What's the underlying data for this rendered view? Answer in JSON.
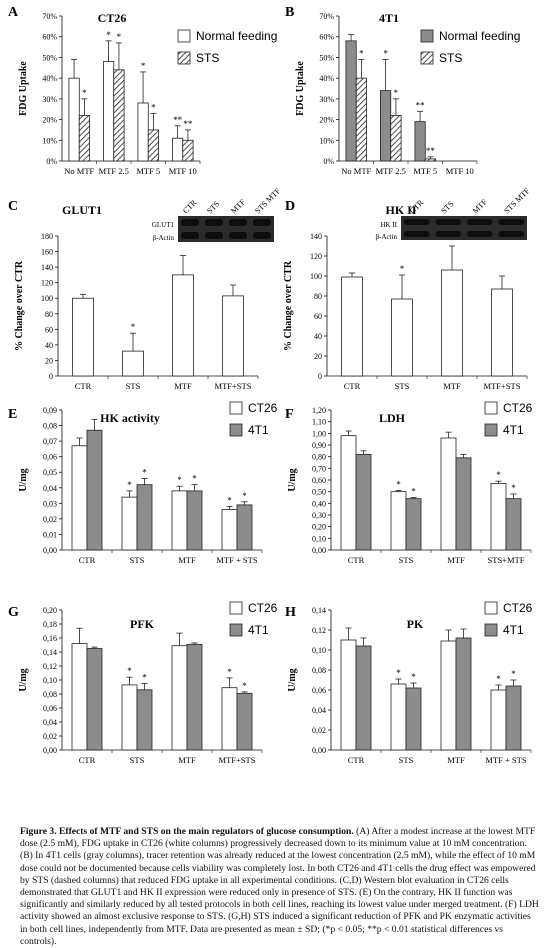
{
  "panels": [
    {
      "letter": "A",
      "title": "CT26",
      "ylabel": "FDG Uptake",
      "yticks": [
        "0%",
        "10%",
        "20%",
        "30%",
        "40%",
        "50%",
        "60%",
        "70%"
      ],
      "ymax": 70,
      "categories": [
        "No MTF",
        "MTF 2.5",
        "MTF 5",
        "MTF 10"
      ],
      "series_style": [
        "white",
        "hatch"
      ],
      "legend": [
        "Normal feeding",
        "STS"
      ],
      "values": [
        [
          40,
          48,
          28,
          11
        ],
        [
          22,
          44,
          15,
          10
        ]
      ],
      "errors": [
        [
          9,
          10,
          15,
          6
        ],
        [
          8,
          13,
          8,
          5
        ]
      ],
      "sig": [
        [
          "",
          "*",
          "*",
          "**"
        ],
        [
          "*",
          "*",
          "*",
          "**"
        ]
      ]
    },
    {
      "letter": "B",
      "title": "4T1",
      "ylabel": "FDG Uptake",
      "yticks": [
        "0%",
        "10%",
        "20%",
        "30%",
        "40%",
        "50%",
        "60%",
        "70%"
      ],
      "ymax": 70,
      "categories": [
        "No MTF",
        "MTF 2.5",
        "MTF 5",
        "MTF 10"
      ],
      "series_style": [
        "gray",
        "hatch"
      ],
      "legend": [
        "Normal feeding",
        "STS"
      ],
      "values": [
        [
          58,
          34,
          19,
          0
        ],
        [
          40,
          22,
          1,
          0
        ]
      ],
      "errors": [
        [
          3,
          15,
          5,
          0
        ],
        [
          9,
          8,
          1,
          0
        ]
      ],
      "sig": [
        [
          "",
          "*",
          "**",
          ""
        ],
        [
          "*",
          "*",
          "**",
          ""
        ]
      ]
    },
    {
      "letter": "C",
      "title": "GLUT1",
      "ylabel": "% Change over CTR",
      "yticks": [
        "0",
        "20",
        "40",
        "60",
        "80",
        "100",
        "120",
        "140",
        "160",
        "180"
      ],
      "ymax": 180,
      "categories": [
        "CTR",
        "STS",
        "MTF",
        "MTF+STS"
      ],
      "series_style": [
        "white"
      ],
      "legend": [],
      "values": [
        [
          100,
          32,
          130,
          103
        ]
      ],
      "errors": [
        [
          5,
          23,
          25,
          14
        ]
      ],
      "sig": [
        [
          "",
          "*",
          "",
          ""
        ]
      ],
      "blot": {
        "lanes": [
          "CTR",
          "STS",
          "MTF",
          "STS MTF"
        ],
        "rows": [
          "GLUT1",
          "β-Actin"
        ]
      }
    },
    {
      "letter": "D",
      "title": "HK II",
      "ylabel": "% Change over CTR",
      "yticks": [
        "0",
        "20",
        "40",
        "60",
        "80",
        "100",
        "120",
        "140"
      ],
      "ymax": 140,
      "categories": [
        "CTR",
        "STS",
        "MTF",
        "MTF+STS"
      ],
      "series_style": [
        "white"
      ],
      "legend": [],
      "values": [
        [
          99,
          77,
          106,
          87
        ]
      ],
      "errors": [
        [
          4,
          24,
          24,
          13
        ]
      ],
      "sig": [
        [
          "",
          "*",
          "",
          ""
        ]
      ],
      "blot": {
        "lanes": [
          "CTR",
          "STS",
          "MTF",
          "STS MTF"
        ],
        "rows": [
          "HK II",
          "β-Actin"
        ]
      }
    },
    {
      "letter": "E",
      "title": "HK activity",
      "ylabel": "U/mg",
      "yticks": [
        "0,00",
        "0,01",
        "0,02",
        "0,03",
        "0,04",
        "0,05",
        "0,06",
        "0,07",
        "0,08",
        "0,09"
      ],
      "ymax": 0.09,
      "categories": [
        "CTR",
        "STS",
        "MTF",
        "MTF + STS"
      ],
      "series_style": [
        "white",
        "gray"
      ],
      "legend": [
        "CT26",
        "4T1"
      ],
      "values": [
        [
          0.067,
          0.034,
          0.038,
          0.026
        ],
        [
          0.077,
          0.042,
          0.038,
          0.029
        ]
      ],
      "errors": [
        [
          0.005,
          0.004,
          0.003,
          0.002
        ],
        [
          0.007,
          0.004,
          0.004,
          0.002
        ]
      ],
      "sig": [
        [
          "",
          "*",
          "*",
          "*"
        ],
        [
          "",
          "*",
          "*",
          "*"
        ]
      ]
    },
    {
      "letter": "F",
      "title": "LDH",
      "ylabel": "U/mg",
      "yticks": [
        "0,00",
        "0,10",
        "0,20",
        "0,30",
        "0,40",
        "0,50",
        "0,60",
        "0,70",
        "0,80",
        "0,90",
        "1,00",
        "1,10",
        "1,20"
      ],
      "ymax": 1.2,
      "categories": [
        "CTR",
        "STS",
        "MTF",
        "STS+MTF"
      ],
      "series_style": [
        "white",
        "gray"
      ],
      "legend": [
        "CT26",
        "4T1"
      ],
      "values": [
        [
          0.98,
          0.5,
          0.96,
          0.57
        ],
        [
          0.82,
          0.44,
          0.79,
          0.44
        ]
      ],
      "errors": [
        [
          0.04,
          0.01,
          0.05,
          0.02
        ],
        [
          0.03,
          0.01,
          0.03,
          0.04
        ]
      ],
      "sig": [
        [
          "",
          "*",
          "",
          "*"
        ],
        [
          "",
          "*",
          "",
          "*"
        ]
      ]
    },
    {
      "letter": "G",
      "title": "PFK",
      "ylabel": "U/mg",
      "yticks": [
        "0,00",
        "0,02",
        "0,04",
        "0,06",
        "0,08",
        "0,10",
        "0,12",
        "0,14",
        "0,16",
        "0,18",
        "0,20"
      ],
      "ymax": 0.2,
      "categories": [
        "CTR",
        "STS",
        "MTF",
        "MTF+STS"
      ],
      "series_style": [
        "white",
        "gray"
      ],
      "legend": [
        "CT26",
        "4T1"
      ],
      "values": [
        [
          0.152,
          0.093,
          0.149,
          0.089
        ],
        [
          0.145,
          0.086,
          0.151,
          0.081
        ]
      ],
      "errors": [
        [
          0.022,
          0.011,
          0.018,
          0.014
        ],
        [
          0.002,
          0.009,
          0.002,
          0.002
        ]
      ],
      "sig": [
        [
          "",
          "*",
          "",
          "*"
        ],
        [
          "",
          "*",
          "",
          "*"
        ]
      ]
    },
    {
      "letter": "H",
      "title": "PK",
      "ylabel": "U/mg",
      "yticks": [
        "0,00",
        "0,02",
        "0,04",
        "0,06",
        "0,08",
        "0,10",
        "0,12",
        "0,14"
      ],
      "ymax": 0.14,
      "categories": [
        "CTR",
        "STS",
        "MTF",
        "MTF + STS"
      ],
      "series_style": [
        "white",
        "gray"
      ],
      "legend": [
        "CT26",
        "4T1"
      ],
      "values": [
        [
          0.11,
          0.066,
          0.109,
          0.06
        ],
        [
          0.104,
          0.062,
          0.112,
          0.064
        ]
      ],
      "errors": [
        [
          0.012,
          0.005,
          0.011,
          0.005
        ],
        [
          0.008,
          0.005,
          0.009,
          0.006
        ]
      ],
      "sig": [
        [
          "",
          "*",
          "",
          "*"
        ],
        [
          "",
          "*",
          "",
          "*"
        ]
      ]
    }
  ],
  "chart_data": [
    {
      "type": "bar",
      "title": "CT26",
      "ylabel": "FDG Uptake",
      "categories": [
        "No MTF",
        "MTF 2.5",
        "MTF 5",
        "MTF 10"
      ],
      "ylim": [
        0,
        70
      ],
      "series": [
        {
          "name": "Normal feeding",
          "values": [
            40,
            48,
            28,
            11
          ]
        },
        {
          "name": "STS",
          "values": [
            22,
            44,
            15,
            10
          ]
        }
      ]
    },
    {
      "type": "bar",
      "title": "4T1",
      "ylabel": "FDG Uptake",
      "categories": [
        "No MTF",
        "MTF 2.5",
        "MTF 5",
        "MTF 10"
      ],
      "ylim": [
        0,
        70
      ],
      "series": [
        {
          "name": "Normal feeding",
          "values": [
            58,
            34,
            19,
            0
          ]
        },
        {
          "name": "STS",
          "values": [
            40,
            22,
            1,
            0
          ]
        }
      ]
    },
    {
      "type": "bar",
      "title": "GLUT1",
      "ylabel": "% Change over CTR",
      "categories": [
        "CTR",
        "STS",
        "MTF",
        "MTF+STS"
      ],
      "ylim": [
        0,
        180
      ],
      "series": [
        {
          "values": [
            100,
            32,
            130,
            103
          ]
        }
      ]
    },
    {
      "type": "bar",
      "title": "HK II",
      "ylabel": "% Change over CTR",
      "categories": [
        "CTR",
        "STS",
        "MTF",
        "MTF+STS"
      ],
      "ylim": [
        0,
        140
      ],
      "series": [
        {
          "values": [
            99,
            77,
            106,
            87
          ]
        }
      ]
    },
    {
      "type": "bar",
      "title": "HK activity",
      "ylabel": "U/mg",
      "categories": [
        "CTR",
        "STS",
        "MTF",
        "MTF + STS"
      ],
      "ylim": [
        0,
        0.09
      ],
      "series": [
        {
          "name": "CT26",
          "values": [
            0.067,
            0.034,
            0.038,
            0.026
          ]
        },
        {
          "name": "4T1",
          "values": [
            0.077,
            0.042,
            0.038,
            0.029
          ]
        }
      ]
    },
    {
      "type": "bar",
      "title": "LDH",
      "ylabel": "U/mg",
      "categories": [
        "CTR",
        "STS",
        "MTF",
        "STS+MTF"
      ],
      "ylim": [
        0,
        1.2
      ],
      "series": [
        {
          "name": "CT26",
          "values": [
            0.98,
            0.5,
            0.96,
            0.57
          ]
        },
        {
          "name": "4T1",
          "values": [
            0.82,
            0.44,
            0.79,
            0.44
          ]
        }
      ]
    },
    {
      "type": "bar",
      "title": "PFK",
      "ylabel": "U/mg",
      "categories": [
        "CTR",
        "STS",
        "MTF",
        "MTF+STS"
      ],
      "ylim": [
        0,
        0.2
      ],
      "series": [
        {
          "name": "CT26",
          "values": [
            0.152,
            0.093,
            0.149,
            0.089
          ]
        },
        {
          "name": "4T1",
          "values": [
            0.145,
            0.086,
            0.151,
            0.081
          ]
        }
      ]
    },
    {
      "type": "bar",
      "title": "PK",
      "ylabel": "U/mg",
      "categories": [
        "CTR",
        "STS",
        "MTF",
        "MTF + STS"
      ],
      "ylim": [
        0,
        0.14
      ],
      "series": [
        {
          "name": "CT26",
          "values": [
            0.11,
            0.066,
            0.109,
            0.06
          ]
        },
        {
          "name": "4T1",
          "values": [
            0.104,
            0.062,
            0.112,
            0.064
          ]
        }
      ]
    }
  ],
  "caption": {
    "title": "Figure 3.  Effects of MTF and STS on the main regulators of glucose consumption.",
    "body": " (A) After a modest increase at the lowest MTF dose (2.5 mM), FDG uptake in CT26 (white columns) progressively decreased down to its minimum value at 10 mM concentration. (B) In 4T1 cells (gray columns), tracer retention was already reduced at the lowest concentration (2.5 mM), while the effect of 10 mM dose could not be documented because cells viability was completely lost. In both CT26 and 4T1 cells the drug effect was empowered by STS (dashed columns) that reduced FDG uptake in all experimental conditions. (C,D) Western blot evaluation in CT26 cells demonstrated that GLUT1 and HK II expression were reduced only in presence of STS. (E) On the contrary, HK II function was significantly and similarly reduced by all tested protocols in both cell lines, reaching its lowest value under merged treatment. (F) LDH activity showed an almost exclusive response to STS. (G,H) STS induced a significant reduction of PFK and PK enzymatic activities in both cell lines, independently from MTF. Data are presented as mean ± SD; (*p < 0.05; **p < 0.01 statistical differences vs controls)."
  }
}
